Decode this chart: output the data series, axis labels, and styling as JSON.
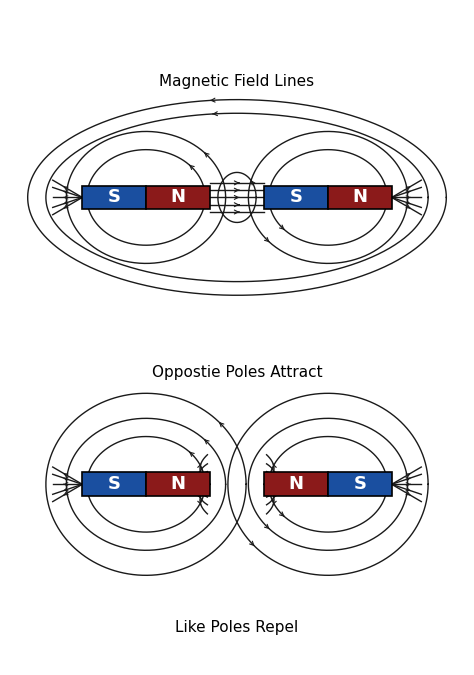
{
  "title1": "Magnetic Field Lines",
  "title2": "Oppostie Poles Attract",
  "title3": "Like Poles Repel",
  "bg_color": "#ffffff",
  "blue_color": "#1a4fa0",
  "red_color": "#8b1a1a",
  "text_color": "#ffffff",
  "line_color": "#1a1a1a",
  "pole_fontsize": 13,
  "bottom_bg": "#111111"
}
